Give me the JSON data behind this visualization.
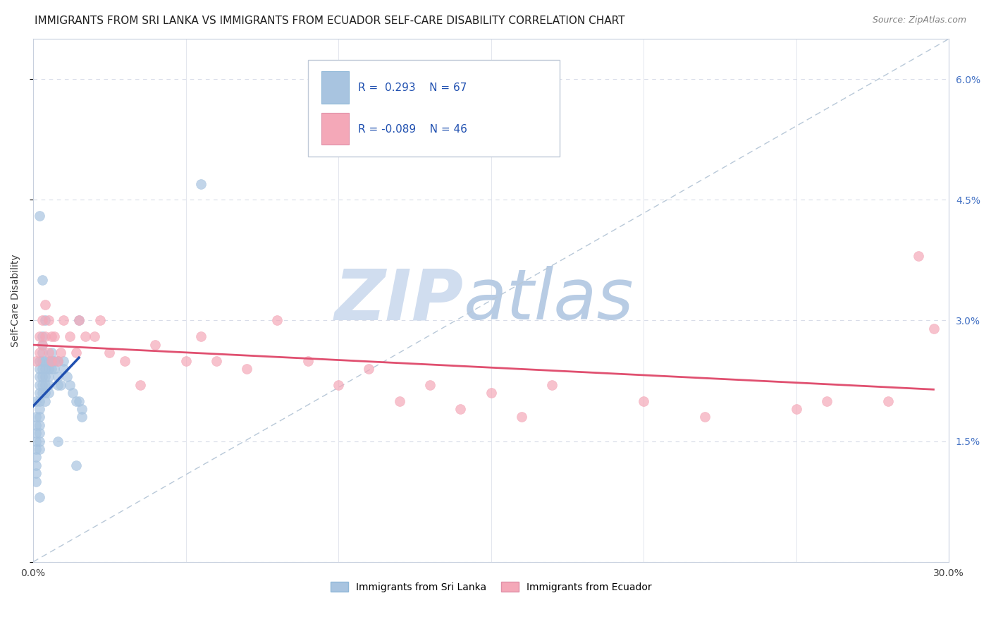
{
  "title": "IMMIGRANTS FROM SRI LANKA VS IMMIGRANTS FROM ECUADOR SELF-CARE DISABILITY CORRELATION CHART",
  "source": "Source: ZipAtlas.com",
  "ylabel": "Self-Care Disability",
  "xlim": [
    0.0,
    0.3
  ],
  "ylim": [
    0.0,
    0.065
  ],
  "x_tick_positions": [
    0.0,
    0.05,
    0.1,
    0.15,
    0.2,
    0.25,
    0.3
  ],
  "x_tick_labels": [
    "0.0%",
    "",
    "",
    "",
    "",
    "",
    "30.0%"
  ],
  "y_tick_positions": [
    0.0,
    0.015,
    0.03,
    0.045,
    0.06
  ],
  "y_tick_labels_right": [
    "",
    "1.5%",
    "3.0%",
    "4.5%",
    "6.0%"
  ],
  "sri_lanka_R": 0.293,
  "sri_lanka_N": 67,
  "ecuador_R": -0.089,
  "ecuador_N": 46,
  "sri_lanka_color": "#a8c4e0",
  "ecuador_color": "#f4a8b8",
  "sri_lanka_line_color": "#2050b0",
  "ecuador_line_color": "#e05070",
  "sri_lanka_x": [
    0.001,
    0.001,
    0.001,
    0.001,
    0.001,
    0.001,
    0.001,
    0.001,
    0.001,
    0.001,
    0.002,
    0.002,
    0.002,
    0.002,
    0.002,
    0.002,
    0.002,
    0.002,
    0.002,
    0.002,
    0.002,
    0.002,
    0.003,
    0.003,
    0.003,
    0.003,
    0.003,
    0.003,
    0.003,
    0.003,
    0.004,
    0.004,
    0.004,
    0.004,
    0.004,
    0.004,
    0.005,
    0.005,
    0.005,
    0.005,
    0.005,
    0.006,
    0.006,
    0.006,
    0.007,
    0.007,
    0.008,
    0.008,
    0.009,
    0.01,
    0.01,
    0.011,
    0.012,
    0.013,
    0.014,
    0.055,
    0.015,
    0.016,
    0.016,
    0.008,
    0.004,
    0.003,
    0.002,
    0.002,
    0.008,
    0.015,
    0.014
  ],
  "sri_lanka_y": [
    0.02,
    0.018,
    0.017,
    0.016,
    0.015,
    0.014,
    0.013,
    0.012,
    0.011,
    0.01,
    0.025,
    0.024,
    0.023,
    0.022,
    0.021,
    0.02,
    0.019,
    0.018,
    0.017,
    0.016,
    0.015,
    0.014,
    0.028,
    0.027,
    0.026,
    0.025,
    0.024,
    0.023,
    0.022,
    0.021,
    0.025,
    0.024,
    0.023,
    0.022,
    0.021,
    0.02,
    0.025,
    0.024,
    0.023,
    0.022,
    0.021,
    0.026,
    0.025,
    0.024,
    0.025,
    0.024,
    0.023,
    0.022,
    0.022,
    0.025,
    0.024,
    0.023,
    0.022,
    0.021,
    0.02,
    0.047,
    0.02,
    0.019,
    0.018,
    0.025,
    0.03,
    0.035,
    0.043,
    0.008,
    0.015,
    0.03,
    0.012
  ],
  "ecuador_x": [
    0.001,
    0.002,
    0.002,
    0.003,
    0.003,
    0.004,
    0.004,
    0.005,
    0.005,
    0.006,
    0.006,
    0.007,
    0.008,
    0.009,
    0.01,
    0.012,
    0.014,
    0.015,
    0.017,
    0.02,
    0.022,
    0.025,
    0.03,
    0.035,
    0.04,
    0.05,
    0.055,
    0.06,
    0.07,
    0.08,
    0.09,
    0.1,
    0.11,
    0.12,
    0.13,
    0.14,
    0.15,
    0.16,
    0.17,
    0.2,
    0.22,
    0.25,
    0.26,
    0.28,
    0.29,
    0.295
  ],
  "ecuador_y": [
    0.025,
    0.028,
    0.026,
    0.03,
    0.027,
    0.032,
    0.028,
    0.03,
    0.026,
    0.028,
    0.025,
    0.028,
    0.025,
    0.026,
    0.03,
    0.028,
    0.026,
    0.03,
    0.028,
    0.028,
    0.03,
    0.026,
    0.025,
    0.022,
    0.027,
    0.025,
    0.028,
    0.025,
    0.024,
    0.03,
    0.025,
    0.022,
    0.024,
    0.02,
    0.022,
    0.019,
    0.021,
    0.018,
    0.022,
    0.02,
    0.018,
    0.019,
    0.02,
    0.02,
    0.038,
    0.029
  ],
  "watermark_zip_color": "#c8d8f0",
  "watermark_atlas_color": "#b0c4e8",
  "background_color": "#ffffff",
  "grid_color": "#d8dce8",
  "title_fontsize": 11,
  "source_fontsize": 9
}
